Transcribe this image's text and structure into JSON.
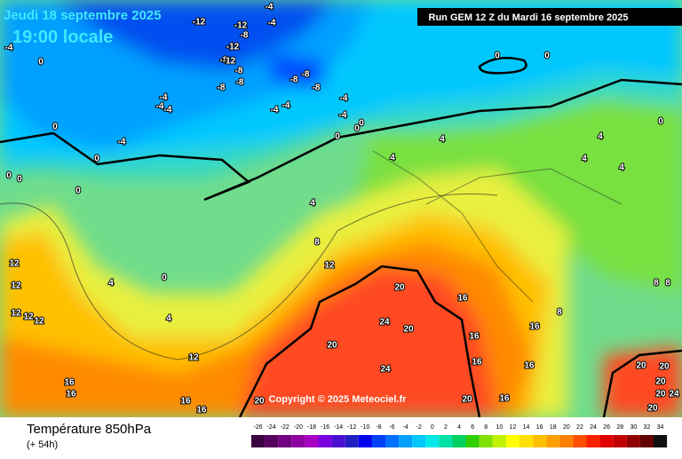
{
  "header": {
    "date": "Jeudi 18 septembre 2025",
    "time": "19:00 locale",
    "run": "Run GEM 12 Z du Mardi 16 septembre 2025"
  },
  "footer": {
    "parameter": "Température 850hPa",
    "lead": "(+ 54h)",
    "copyright": "Copyright © 2025 Meteociel.fr"
  },
  "contour_labels": [
    -12,
    -12,
    -8,
    -4,
    -4,
    -4,
    -12,
    -8,
    -12,
    -8,
    -8,
    -8,
    -8,
    -8,
    -8,
    -4,
    -4,
    -4,
    -4,
    -4,
    -4,
    -4,
    -4,
    0,
    0,
    0,
    0,
    0,
    0,
    0,
    0,
    0,
    0,
    0,
    0,
    4,
    4,
    4,
    4,
    4,
    4,
    4,
    4,
    0,
    8,
    12,
    12,
    12,
    12,
    12,
    12,
    12,
    20,
    24,
    20,
    20,
    24,
    16,
    16,
    16,
    16,
    16,
    8,
    8,
    8,
    16,
    16,
    16,
    16,
    20,
    20,
    16,
    20,
    20,
    20,
    20,
    24,
    20
  ],
  "colorbar": {
    "ticks": [
      -26,
      -24,
      -22,
      -20,
      -18,
      -16,
      -14,
      -12,
      -10,
      -8,
      -6,
      -4,
      -2,
      0,
      2,
      4,
      6,
      8,
      10,
      12,
      14,
      16,
      18,
      20,
      22,
      24,
      26,
      28,
      30,
      32,
      34
    ],
    "colors": [
      "#3a0040",
      "#560060",
      "#720080",
      "#8e00a0",
      "#a800c0",
      "#7a00e0",
      "#4a10d0",
      "#2020c0",
      "#0000f0",
      "#0040ff",
      "#0070ff",
      "#00a0ff",
      "#00c8ff",
      "#00e8e8",
      "#00e0a8",
      "#00d060",
      "#30d000",
      "#80e000",
      "#c0f000",
      "#ffff00",
      "#ffe000",
      "#ffc000",
      "#ffa000",
      "#ff8000",
      "#ff5000",
      "#ff2000",
      "#e00000",
      "#c00000",
      "#900000",
      "#600000",
      "#101010"
    ]
  }
}
